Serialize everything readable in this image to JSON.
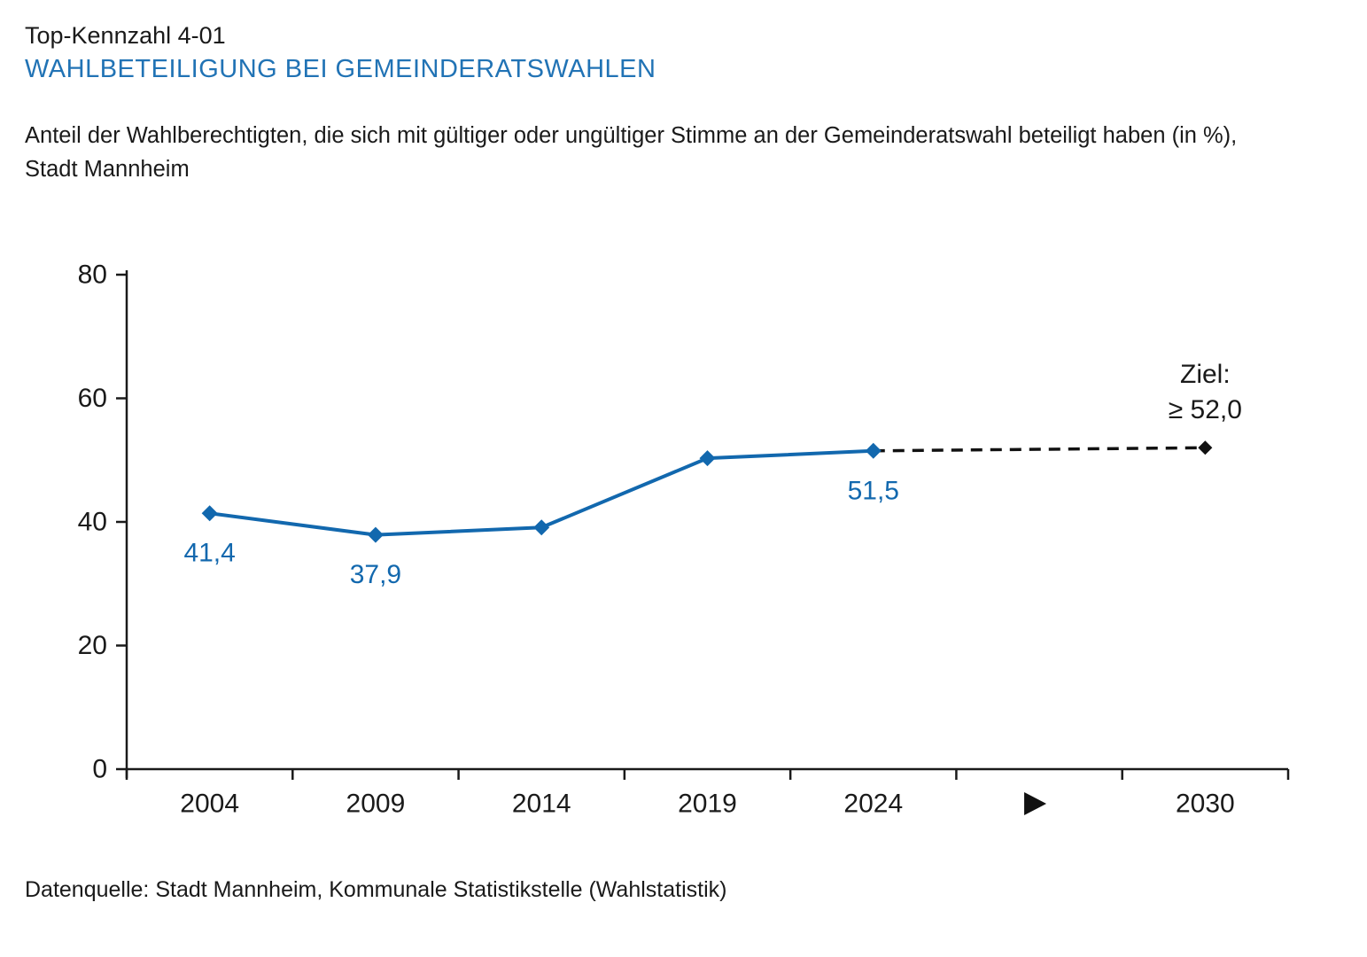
{
  "header": {
    "kennzahl": "Top-Kennzahl 4-01",
    "title": "WAHLBETEILIGUNG BEI GEMEINDERATSWAHLEN",
    "description": "Anteil der Wahlberechtigten, die sich mit gültiger oder ungültiger Stimme an der Gemeinderatswahl beteiligt haben (in %),\nStadt Mannheim"
  },
  "footer": {
    "source": "Datenquelle: Stadt Mannheim, Kommunale Statistikstelle (Wahlstatistik)"
  },
  "colors": {
    "heading_blue": "#2173B5",
    "series_blue": "#1268AE",
    "target_black": "#111111",
    "text_black": "#1A1A1A"
  },
  "chart_data": {
    "type": "line",
    "title": "Wahlbeteiligung bei Gemeinderatswahlen (in %), Stadt Mannheim",
    "x_categories": [
      "2004",
      "2009",
      "2014",
      "2019",
      "2024",
      "",
      "2030"
    ],
    "series": [
      {
        "name": "Wahlbeteiligung",
        "x": [
          "2004",
          "2009",
          "2014",
          "2019",
          "2024"
        ],
        "values": [
          41.4,
          37.9,
          39.1,
          50.3,
          51.5
        ],
        "point_labels": {
          "2004": "41,4",
          "2009": "37,9",
          "2024": "51,5"
        },
        "color": "#1268AE",
        "marker": "diamond"
      }
    ],
    "target": {
      "x": "2030",
      "value": 52.0,
      "label_lines": [
        "Ziel:",
        "≥ 52,0"
      ],
      "line_style": "dashed",
      "color": "#111111"
    },
    "axis_marker": {
      "symbol": "►",
      "slot_index": 5
    },
    "ylim": [
      0,
      80
    ],
    "yticks": [
      0,
      20,
      40,
      60,
      80
    ],
    "xlabel": "",
    "ylabel": "",
    "grid": false,
    "legend": "none"
  }
}
